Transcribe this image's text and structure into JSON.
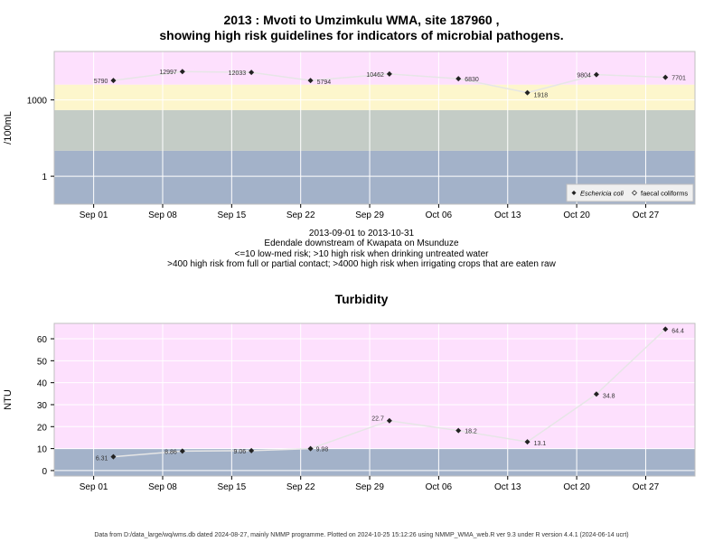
{
  "chart_data": [
    {
      "type": "line",
      "title_line1": "2013 : Mvoti to Umzimkulu WMA, site 187960 ,",
      "title_line2": "showing high risk guidelines for indicators of microbial pathogens.",
      "ylabel": "/100mL",
      "yscale": "log",
      "yticks": [
        1,
        1000
      ],
      "ylim": [
        0.08,
        80000
      ],
      "x_range": [
        "2013-08-28",
        "2013-11-01"
      ],
      "x_ticks": [
        {
          "date": "2013-09-01",
          "label": "Sep 01"
        },
        {
          "date": "2013-09-08",
          "label": "Sep 08"
        },
        {
          "date": "2013-09-15",
          "label": "Sep 15"
        },
        {
          "date": "2013-09-22",
          "label": "Sep 22"
        },
        {
          "date": "2013-09-29",
          "label": "Sep 29"
        },
        {
          "date": "2013-10-06",
          "label": "Oct 06"
        },
        {
          "date": "2013-10-13",
          "label": "Oct 13"
        },
        {
          "date": "2013-10-20",
          "label": "Oct 20"
        },
        {
          "date": "2013-10-27",
          "label": "Oct 27"
        }
      ],
      "bands": [
        {
          "from": 0.08,
          "to": 10,
          "color": "#a3b2c9"
        },
        {
          "from": 10,
          "to": 400,
          "color": "#c4ccc6"
        },
        {
          "from": 400,
          "to": 4000,
          "color": "#fdf6cc"
        },
        {
          "from": 4000,
          "to": 80000,
          "color": "#fde0fd"
        }
      ],
      "series": [
        {
          "name": "Eschericia coli",
          "x": [
            "2013-09-03",
            "2013-09-10",
            "2013-09-17",
            "2013-09-23",
            "2013-10-01",
            "2013-10-08",
            "2013-10-15",
            "2013-10-22",
            "2013-10-29"
          ],
          "values": [
            5790,
            12997,
            12033,
            5794,
            10462,
            6830,
            1918,
            9804,
            7701
          ],
          "labels": [
            "5790",
            "12997",
            "12033",
            "5794",
            "10462",
            "6830",
            "1918",
            "9804",
            "7701"
          ]
        }
      ],
      "legend": {
        "placement": "bottom-right",
        "items": [
          "Eschericia coli",
          "faecal coliforms"
        ]
      }
    },
    {
      "type": "line",
      "title": "Turbidity",
      "ylabel": "NTU",
      "yticks": [
        0,
        10,
        20,
        30,
        40,
        50,
        60
      ],
      "ylim": [
        -2.5,
        67
      ],
      "x_range": [
        "2013-08-28",
        "2013-11-01"
      ],
      "x_ticks": [
        {
          "date": "2013-09-01",
          "label": "Sep 01"
        },
        {
          "date": "2013-09-08",
          "label": "Sep 08"
        },
        {
          "date": "2013-09-15",
          "label": "Sep 15"
        },
        {
          "date": "2013-09-22",
          "label": "Sep 22"
        },
        {
          "date": "2013-09-29",
          "label": "Sep 29"
        },
        {
          "date": "2013-10-06",
          "label": "Oct 06"
        },
        {
          "date": "2013-10-13",
          "label": "Oct 13"
        },
        {
          "date": "2013-10-20",
          "label": "Oct 20"
        },
        {
          "date": "2013-10-27",
          "label": "Oct 27"
        }
      ],
      "bands": [
        {
          "from": -2.5,
          "to": 10,
          "color": "#a3b2c9"
        },
        {
          "from": 10,
          "to": 67,
          "color": "#fde0fd"
        }
      ],
      "series": [
        {
          "x": [
            "2013-09-03",
            "2013-09-10",
            "2013-09-17",
            "2013-09-23",
            "2013-10-01",
            "2013-10-08",
            "2013-10-15",
            "2013-10-22",
            "2013-10-29"
          ],
          "values": [
            6.31,
            8.86,
            9.06,
            9.98,
            22.7,
            18.2,
            13.1,
            34.8,
            64.4
          ],
          "labels": [
            "6.31",
            "8.86",
            "9.06",
            "9.98",
            "22.7",
            "18.2",
            "13.1",
            "34.8",
            "64.4"
          ]
        }
      ]
    }
  ],
  "caption": {
    "date_range": "2013-09-01 to 2013-10-31",
    "location": "Edendale downstream of Kwapata on Msunduze",
    "line3": "<=10 low-med risk; >10 high risk when drinking untreated water",
    "line4": ">400 high risk from full or partial contact; >4000 high risk when irrigating crops that are eaten raw"
  },
  "footer": "Data from D:/data_large/wq/wms.db dated 2024-08-27, mainly NMMP programme. Plotted on 2024-10-25 15:12:26 using NMMP_WMA_web.R ver 9.3 under R version 4.4.1 (2024-06-14 ucrt)",
  "colors": {
    "grid": "#ffffff",
    "line": "#e6e6e6",
    "point": "#222222"
  }
}
